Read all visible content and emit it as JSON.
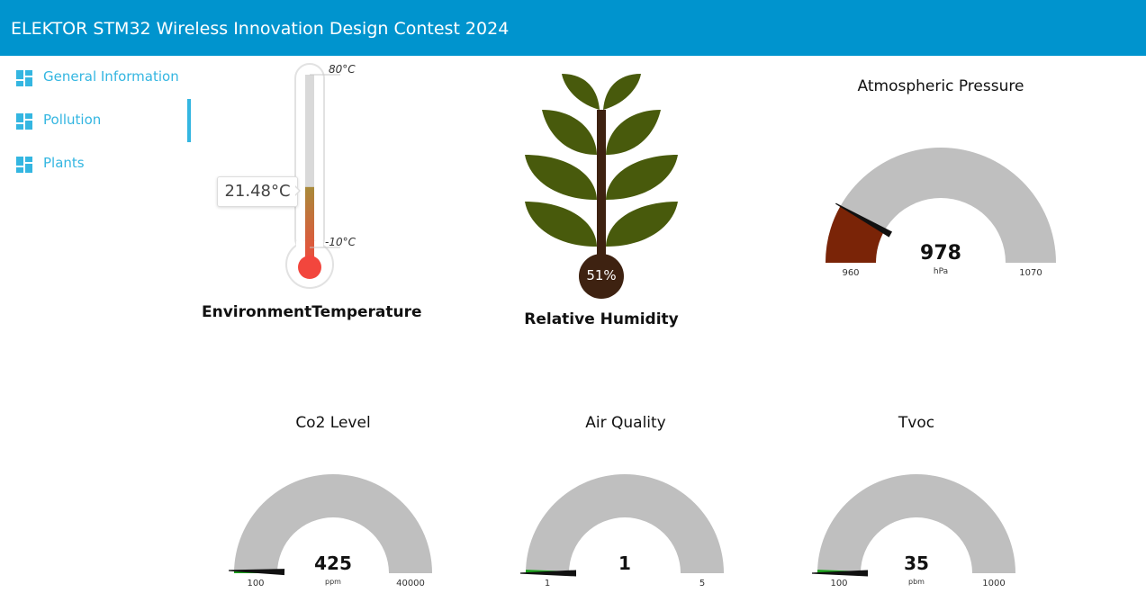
{
  "header": {
    "title": "ELEKTOR STM32 Wireless Innovation Design Contest 2024"
  },
  "sidebar": {
    "items": [
      {
        "label": "General Information",
        "icon": "dashboard-icon",
        "active": false
      },
      {
        "label": "Pollution",
        "icon": "dashboard-icon",
        "active": true
      },
      {
        "label": "Plants",
        "icon": "dashboard-icon",
        "active": false
      }
    ]
  },
  "temperature": {
    "title": "EnvironmentTemperature",
    "value_text": "21.48°C",
    "value": 21.48,
    "max_label": "80°C",
    "min_label": "-10°C",
    "min": -10,
    "max": 80
  },
  "humidity": {
    "title": "Relative Humidity",
    "value_text": "51%",
    "value": 51
  },
  "pressure": {
    "title": "Atmospheric Pressure",
    "value": 978,
    "value_text": "978",
    "unit": "hPa",
    "min": 960,
    "max": 1070,
    "min_label": "960",
    "max_label": "1070",
    "fill_color": "#7a2407"
  },
  "co2": {
    "title": "Co2 Level",
    "value": 425,
    "value_text": "425",
    "unit": "ppm",
    "min": 100,
    "max": 40000,
    "min_label": "100",
    "max_label": "40000",
    "fill_color": "#1aa11a"
  },
  "air_quality": {
    "title": "Air Quality",
    "value": 1,
    "value_text": "1",
    "unit": "",
    "min": 1,
    "max": 5,
    "min_label": "1",
    "max_label": "5",
    "fill_color": "#1aa11a"
  },
  "tvoc": {
    "title": "Tvoc",
    "value": 35,
    "value_text": "35",
    "unit": "pbm",
    "min": 100,
    "max": 1000,
    "min_label": "100",
    "max_label": "1000",
    "fill_color": "#1aa11a"
  },
  "colors": {
    "header_bg": "#0094ce",
    "accent": "#34b6e1",
    "gauge_track": "#bfbfbf",
    "leaf": "#485a0c",
    "stem": "#3e2211",
    "thermo_bulb": "#f2463d"
  }
}
